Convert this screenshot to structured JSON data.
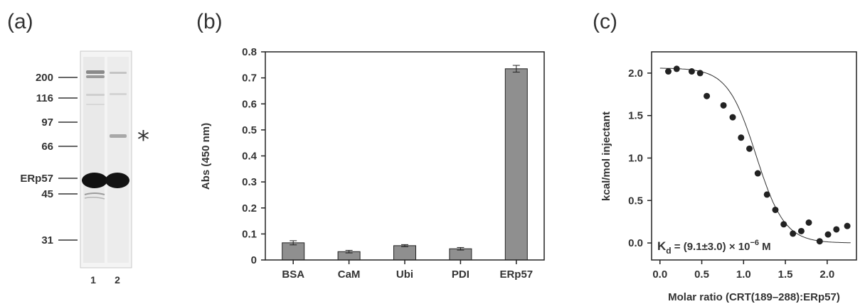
{
  "panels": {
    "a": {
      "label": "(a)"
    },
    "b": {
      "label": "(b)"
    },
    "c": {
      "label": "(c)"
    }
  },
  "chart_data": [
    {
      "type": "gel",
      "panel": "(a)",
      "markers": [
        {
          "label": "200",
          "kda": 200
        },
        {
          "label": "116",
          "kda": 116
        },
        {
          "label": "97",
          "kda": 97
        },
        {
          "label": "66",
          "kda": 66
        },
        {
          "label": "ERp57",
          "kda": 57
        },
        {
          "label": "45",
          "kda": 45
        },
        {
          "label": "31",
          "kda": 31
        }
      ],
      "lanes": [
        "1",
        "2"
      ],
      "annotation": "*"
    },
    {
      "type": "bar",
      "panel": "(b)",
      "categories": [
        "BSA",
        "CaM",
        "Ubi",
        "PDI",
        "ERp57"
      ],
      "values": [
        0.066,
        0.032,
        0.055,
        0.043,
        0.735
      ],
      "errors": [
        0.008,
        0.005,
        0.004,
        0.005,
        0.013
      ],
      "ylabel": "Abs (450 nm)",
      "ylim": [
        0,
        0.8
      ],
      "yticks": [
        "0",
        "0.1",
        "0.2",
        "0.3",
        "0.4",
        "0.5",
        "0.6",
        "0.7",
        "0.8"
      ],
      "bar_color": "#8f8f8f",
      "grid": false
    },
    {
      "type": "scatter",
      "panel": "(c)",
      "xlabel": "Molar ratio (CRT(189–288):ERp57)",
      "ylabel": "kcal/mol injectant",
      "xlim": [
        -0.1,
        2.35
      ],
      "ylim": [
        -0.2,
        2.25
      ],
      "xticks": [
        "0.0",
        "0.5",
        "1.0",
        "1.5",
        "2.0"
      ],
      "yticks": [
        "0.0",
        "0.5",
        "1.0",
        "1.5",
        "2.0"
      ],
      "points": [
        [
          0.1,
          2.02
        ],
        [
          0.2,
          2.05
        ],
        [
          0.38,
          2.02
        ],
        [
          0.48,
          2.0
        ],
        [
          0.56,
          1.73
        ],
        [
          0.76,
          1.62
        ],
        [
          0.87,
          1.48
        ],
        [
          0.97,
          1.24
        ],
        [
          1.07,
          1.11
        ],
        [
          1.17,
          0.82
        ],
        [
          1.28,
          0.57
        ],
        [
          1.38,
          0.39
        ],
        [
          1.48,
          0.22
        ],
        [
          1.59,
          0.11
        ],
        [
          1.69,
          0.14
        ],
        [
          1.78,
          0.24
        ],
        [
          1.91,
          0.02
        ],
        [
          2.01,
          0.1
        ],
        [
          2.11,
          0.16
        ],
        [
          2.24,
          0.2
        ]
      ],
      "fit": {
        "top": 2.06,
        "bottom": 0.0,
        "midpoint": 1.15,
        "width": 0.17
      },
      "annotation": "K_d = (9.1±3.0) × 10^-6 M",
      "kd_text": {
        "k": "K",
        "sub": "d",
        "mid": " = (9.1±3.0) × 10",
        "sup": "−6",
        "tail": " M"
      },
      "grid": false
    }
  ]
}
